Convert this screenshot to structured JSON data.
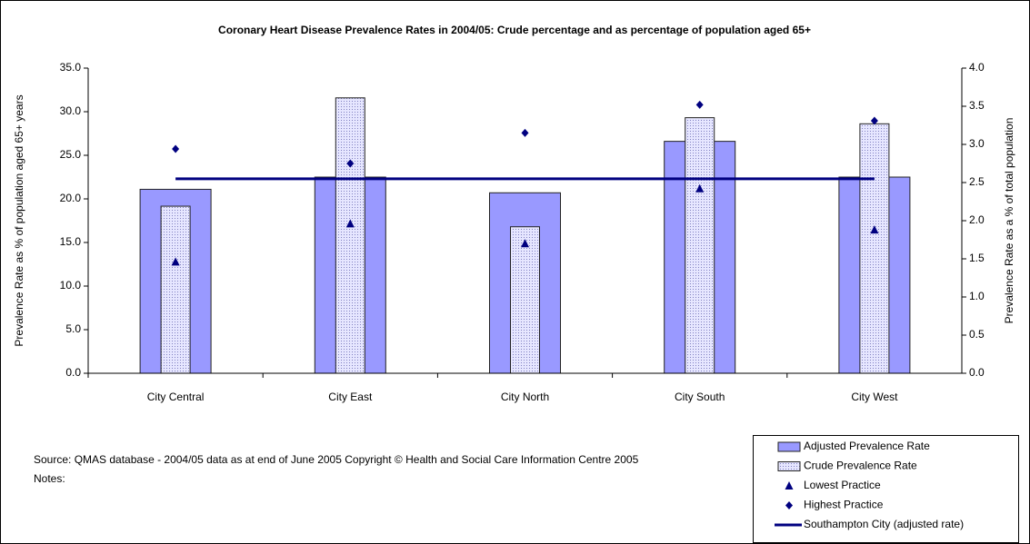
{
  "chart_data": {
    "type": "bar",
    "title": "Coronary Heart Disease Prevalence Rates in 2004/05: Crude percentage and as percentage of population aged 65+",
    "ylabel": "Prevalence Rate as % of population aged 65+ years",
    "y2label": "Prevalence Rate as a % of total population",
    "source": "Source: QMAS database - 2004/05 data as at end of June 2005 Copyright © Health and Social Care Information Centre 2005",
    "notes": "Notes:",
    "categories": [
      "City Central",
      "City East",
      "City North",
      "City South",
      "City West"
    ],
    "ylim": [
      0,
      35
    ],
    "yticks": [
      {
        "value": 0,
        "label": "0.0"
      },
      {
        "value": 5,
        "label": "5.0"
      },
      {
        "value": 10,
        "label": "10.0"
      },
      {
        "value": 15,
        "label": "15.0"
      },
      {
        "value": 20,
        "label": "20.0"
      },
      {
        "value": 25,
        "label": "25.0"
      },
      {
        "value": 30,
        "label": "30.0"
      },
      {
        "value": 35,
        "label": "35.0"
      }
    ],
    "y2lim": [
      0,
      4
    ],
    "y2ticks": [
      {
        "value": 0,
        "label": "0.0"
      },
      {
        "value": 0.5,
        "label": "0.5"
      },
      {
        "value": 1,
        "label": "1.0"
      },
      {
        "value": 1.5,
        "label": "1.5"
      },
      {
        "value": 2,
        "label": "2.0"
      },
      {
        "value": 2.5,
        "label": "2.5"
      },
      {
        "value": 3,
        "label": "3.0"
      },
      {
        "value": 3.5,
        "label": "3.5"
      },
      {
        "value": 4,
        "label": "4.0"
      }
    ],
    "legend": "bottom-right",
    "series": [
      {
        "name": "Adjusted Prevalence Rate",
        "type": "bar",
        "color": "#9999ff",
        "values": [
          21.1,
          22.5,
          20.7,
          26.6,
          22.5
        ]
      },
      {
        "name": "Crude Prevalence Rate",
        "type": "bar",
        "hatch": true,
        "color": "#ccccff",
        "axis": "y2",
        "values": [
          2.19,
          3.61,
          1.92,
          3.35,
          3.27
        ]
      },
      {
        "name": "Lowest Practice",
        "type": "scatter",
        "marker": "triangle",
        "color": "#000080",
        "axis": "y2",
        "values": [
          1.46,
          1.96,
          1.7,
          2.42,
          1.88
        ]
      },
      {
        "name": "Highest Practice",
        "type": "scatter",
        "marker": "diamond",
        "color": "#000080",
        "axis": "y2",
        "values": [
          2.94,
          2.75,
          3.15,
          3.52,
          3.31
        ]
      },
      {
        "name": "Southampton City (adjusted rate)",
        "type": "line",
        "color": "#000080",
        "values": [
          22.3,
          22.3,
          22.3,
          22.3,
          22.3
        ]
      }
    ]
  }
}
